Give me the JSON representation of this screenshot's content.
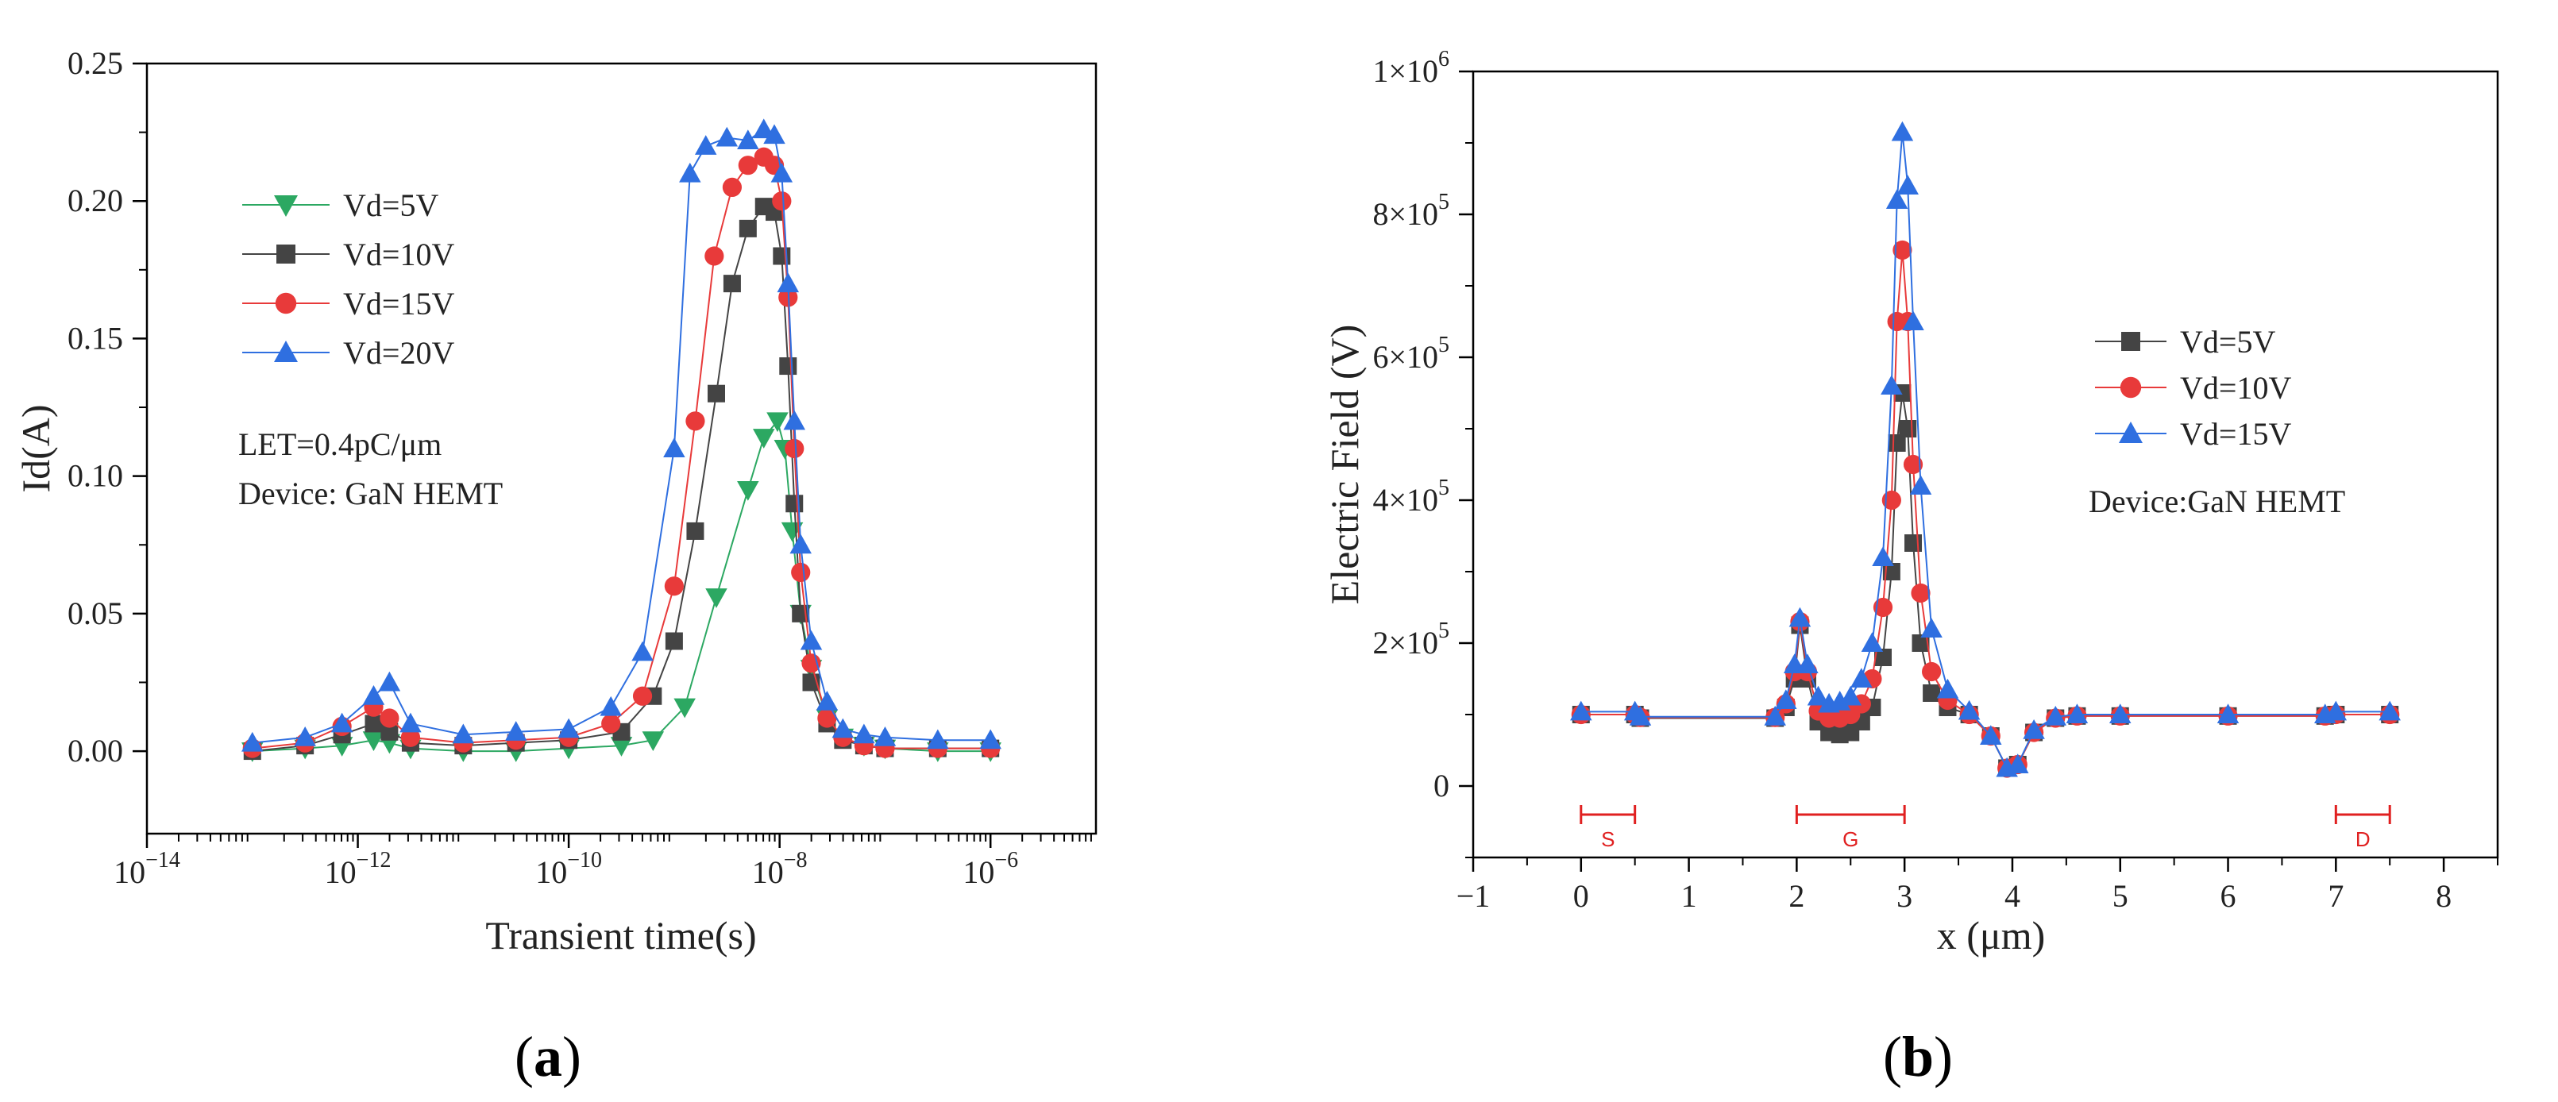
{
  "chart_data": [
    {
      "id": "a",
      "type": "line",
      "xscale": "log",
      "xlim_exp": [
        -14,
        -5
      ],
      "xticks_exp": [
        -14,
        -12,
        -10,
        -8,
        -6
      ],
      "xtick_labels": [
        {
          "base": "10",
          "exp": "−14"
        },
        {
          "base": "10",
          "exp": "−12"
        },
        {
          "base": "10",
          "exp": "−10"
        },
        {
          "base": "10",
          "exp": "−8"
        },
        {
          "base": "10",
          "exp": "−6"
        }
      ],
      "ylim": [
        -0.03,
        0.25
      ],
      "yticks": [
        0.0,
        0.05,
        0.1,
        0.15,
        0.2,
        0.25
      ],
      "ytick_labels": [
        "0.00",
        "0.05",
        "0.10",
        "0.15",
        "0.20",
        "0.25"
      ],
      "xlabel": "Transient time(s)",
      "ylabel": "Id(A)",
      "legend_position": "top-left",
      "annotations": [
        "LET=0.4pC/μm",
        "Device: GaN HEMT"
      ],
      "panel_label": {
        "open": "(",
        "letter": "a",
        "close": ")"
      },
      "series": [
        {
          "name": "Vd=5V",
          "color": "#2ca862",
          "marker": "triangle-down",
          "points": [
            [
              -13,
              0.0
            ],
            [
              -12.5,
              0.001
            ],
            [
              -12.15,
              0.002
            ],
            [
              -11.85,
              0.004
            ],
            [
              -11.7,
              0.003
            ],
            [
              -11.5,
              0.001
            ],
            [
              -11,
              0.0
            ],
            [
              -10.5,
              0.0
            ],
            [
              -10,
              0.001
            ],
            [
              -9.5,
              0.002
            ],
            [
              -9.2,
              0.004
            ],
            [
              -8.9,
              0.016
            ],
            [
              -8.6,
              0.056
            ],
            [
              -8.3,
              0.095
            ],
            [
              -8.15,
              0.114
            ],
            [
              -8.02,
              0.12
            ],
            [
              -7.95,
              0.11
            ],
            [
              -7.88,
              0.08
            ],
            [
              -7.8,
              0.05
            ],
            [
              -7.7,
              0.03
            ],
            [
              -7.55,
              0.012
            ],
            [
              -7.4,
              0.005
            ],
            [
              -7.2,
              0.002
            ],
            [
              -7,
              0.001
            ],
            [
              -6.5,
              0.0
            ],
            [
              -6,
              0.0
            ]
          ]
        },
        {
          "name": "Vd=10V",
          "color": "#444444",
          "marker": "square",
          "points": [
            [
              -13,
              0.0
            ],
            [
              -12.5,
              0.002
            ],
            [
              -12.15,
              0.006
            ],
            [
              -11.85,
              0.01
            ],
            [
              -11.7,
              0.007
            ],
            [
              -11.5,
              0.003
            ],
            [
              -11,
              0.002
            ],
            [
              -10.5,
              0.003
            ],
            [
              -10,
              0.004
            ],
            [
              -9.5,
              0.007
            ],
            [
              -9.2,
              0.02
            ],
            [
              -9.0,
              0.04
            ],
            [
              -8.8,
              0.08
            ],
            [
              -8.6,
              0.13
            ],
            [
              -8.45,
              0.17
            ],
            [
              -8.3,
              0.19
            ],
            [
              -8.15,
              0.198
            ],
            [
              -8.05,
              0.196
            ],
            [
              -7.98,
              0.18
            ],
            [
              -7.92,
              0.14
            ],
            [
              -7.86,
              0.09
            ],
            [
              -7.8,
              0.05
            ],
            [
              -7.7,
              0.025
            ],
            [
              -7.55,
              0.01
            ],
            [
              -7.4,
              0.004
            ],
            [
              -7.2,
              0.002
            ],
            [
              -7,
              0.001
            ],
            [
              -6.5,
              0.001
            ],
            [
              -6,
              0.001
            ]
          ]
        },
        {
          "name": "Vd=15V",
          "color": "#e83a3a",
          "marker": "circle",
          "points": [
            [
              -13,
              0.001
            ],
            [
              -12.5,
              0.003
            ],
            [
              -12.15,
              0.009
            ],
            [
              -11.85,
              0.016
            ],
            [
              -11.7,
              0.012
            ],
            [
              -11.5,
              0.005
            ],
            [
              -11,
              0.003
            ],
            [
              -10.5,
              0.004
            ],
            [
              -10,
              0.005
            ],
            [
              -9.6,
              0.01
            ],
            [
              -9.3,
              0.02
            ],
            [
              -9.0,
              0.06
            ],
            [
              -8.8,
              0.12
            ],
            [
              -8.62,
              0.18
            ],
            [
              -8.45,
              0.205
            ],
            [
              -8.3,
              0.213
            ],
            [
              -8.15,
              0.216
            ],
            [
              -8.05,
              0.213
            ],
            [
              -7.98,
              0.2
            ],
            [
              -7.92,
              0.165
            ],
            [
              -7.86,
              0.11
            ],
            [
              -7.8,
              0.065
            ],
            [
              -7.7,
              0.032
            ],
            [
              -7.55,
              0.012
            ],
            [
              -7.4,
              0.005
            ],
            [
              -7.2,
              0.002
            ],
            [
              -7,
              0.001
            ],
            [
              -6.5,
              0.001
            ],
            [
              -6,
              0.001
            ]
          ]
        },
        {
          "name": "Vd=20V",
          "color": "#2f6fe0",
          "marker": "triangle-up",
          "points": [
            [
              -13,
              0.003
            ],
            [
              -12.5,
              0.005
            ],
            [
              -12.15,
              0.01
            ],
            [
              -11.85,
              0.02
            ],
            [
              -11.7,
              0.025
            ],
            [
              -11.5,
              0.01
            ],
            [
              -11,
              0.006
            ],
            [
              -10.5,
              0.007
            ],
            [
              -10,
              0.008
            ],
            [
              -9.6,
              0.016
            ],
            [
              -9.3,
              0.036
            ],
            [
              -9.0,
              0.11
            ],
            [
              -8.85,
              0.21
            ],
            [
              -8.7,
              0.22
            ],
            [
              -8.5,
              0.223
            ],
            [
              -8.3,
              0.222
            ],
            [
              -8.15,
              0.226
            ],
            [
              -8.05,
              0.224
            ],
            [
              -7.98,
              0.21
            ],
            [
              -7.92,
              0.17
            ],
            [
              -7.86,
              0.12
            ],
            [
              -7.8,
              0.075
            ],
            [
              -7.7,
              0.04
            ],
            [
              -7.55,
              0.018
            ],
            [
              -7.4,
              0.008
            ],
            [
              -7.2,
              0.006
            ],
            [
              -7,
              0.005
            ],
            [
              -6.5,
              0.004
            ],
            [
              -6,
              0.004
            ]
          ]
        }
      ]
    },
    {
      "id": "b",
      "type": "line",
      "xlim": [
        -1,
        8.5
      ],
      "xticks": [
        -1,
        0,
        1,
        2,
        3,
        4,
        5,
        6,
        7,
        8
      ],
      "xtick_labels": [
        "−1",
        "0",
        "1",
        "2",
        "3",
        "4",
        "5",
        "6",
        "7",
        "8"
      ],
      "ylim": [
        -100000,
        1000000
      ],
      "yticks": [
        0,
        200000,
        400000,
        600000,
        800000,
        1000000
      ],
      "ytick_labels": [
        {
          "base": "0",
          "exp": ""
        },
        {
          "base": "2×10",
          "exp": "5"
        },
        {
          "base": "4×10",
          "exp": "5"
        },
        {
          "base": "6×10",
          "exp": "5"
        },
        {
          "base": "8×10",
          "exp": "5"
        },
        {
          "base": "1×10",
          "exp": "6"
        }
      ],
      "xlabel": "x (μm)",
      "ylabel": "Electric Field (V)",
      "legend_position": "right",
      "annotations": [
        "Device:GaN HEMT"
      ],
      "regions": [
        {
          "label": "S",
          "x0": 0,
          "x1": 0.5
        },
        {
          "label": "G",
          "x0": 2,
          "x1": 3
        },
        {
          "label": "D",
          "x0": 7,
          "x1": 7.5
        }
      ],
      "region_color": "#e02020",
      "panel_label": {
        "open": "(",
        "letter": "b",
        "close": ")"
      },
      "series": [
        {
          "name": "Vd=5V",
          "color": "#444444",
          "marker": "square",
          "points": [
            [
              0,
              100000
            ],
            [
              0.5,
              100000
            ],
            [
              0.55,
              95000
            ],
            [
              1.8,
              95000
            ],
            [
              1.9,
              110000
            ],
            [
              1.98,
              150000
            ],
            [
              2.03,
              225000
            ],
            [
              2.1,
              150000
            ],
            [
              2.2,
              90000
            ],
            [
              2.3,
              75000
            ],
            [
              2.4,
              72000
            ],
            [
              2.5,
              75000
            ],
            [
              2.6,
              90000
            ],
            [
              2.7,
              110000
            ],
            [
              2.8,
              180000
            ],
            [
              2.88,
              300000
            ],
            [
              2.93,
              480000
            ],
            [
              2.98,
              550000
            ],
            [
              3.03,
              500000
            ],
            [
              3.08,
              340000
            ],
            [
              3.15,
              200000
            ],
            [
              3.25,
              130000
            ],
            [
              3.4,
              110000
            ],
            [
              3.6,
              100000
            ],
            [
              3.8,
              70000
            ],
            [
              3.95,
              25000
            ],
            [
              4.05,
              30000
            ],
            [
              4.2,
              75000
            ],
            [
              4.4,
              95000
            ],
            [
              4.6,
              98000
            ],
            [
              5,
              98000
            ],
            [
              6,
              98000
            ],
            [
              6.9,
              98000
            ],
            [
              7.0,
              100000
            ],
            [
              7.5,
              100000
            ]
          ]
        },
        {
          "name": "Vd=10V",
          "color": "#e83a3a",
          "marker": "circle",
          "points": [
            [
              0,
              100000
            ],
            [
              0.5,
              100000
            ],
            [
              0.55,
              96000
            ],
            [
              1.8,
              96000
            ],
            [
              1.9,
              115000
            ],
            [
              1.98,
              160000
            ],
            [
              2.03,
              230000
            ],
            [
              2.1,
              160000
            ],
            [
              2.2,
              105000
            ],
            [
              2.3,
              95000
            ],
            [
              2.4,
              95000
            ],
            [
              2.5,
              100000
            ],
            [
              2.6,
              115000
            ],
            [
              2.7,
              150000
            ],
            [
              2.8,
              250000
            ],
            [
              2.88,
              400000
            ],
            [
              2.93,
              650000
            ],
            [
              2.98,
              750000
            ],
            [
              3.03,
              650000
            ],
            [
              3.08,
              450000
            ],
            [
              3.15,
              270000
            ],
            [
              3.25,
              160000
            ],
            [
              3.4,
              120000
            ],
            [
              3.6,
              100000
            ],
            [
              3.8,
              70000
            ],
            [
              3.95,
              25000
            ],
            [
              4.05,
              30000
            ],
            [
              4.2,
              75000
            ],
            [
              4.4,
              95000
            ],
            [
              4.6,
              98000
            ],
            [
              5,
              98000
            ],
            [
              6,
              98000
            ],
            [
              6.9,
              98000
            ],
            [
              7.0,
              100000
            ],
            [
              7.5,
              100000
            ]
          ]
        },
        {
          "name": "Vd=15V",
          "color": "#2f6fe0",
          "marker": "triangle-up",
          "points": [
            [
              0,
              104000
            ],
            [
              0.5,
              104000
            ],
            [
              0.55,
              97000
            ],
            [
              1.8,
              97000
            ],
            [
              1.9,
              120000
            ],
            [
              1.98,
              170000
            ],
            [
              2.03,
              235000
            ],
            [
              2.1,
              170000
            ],
            [
              2.2,
              125000
            ],
            [
              2.3,
              115000
            ],
            [
              2.4,
              118000
            ],
            [
              2.5,
              125000
            ],
            [
              2.6,
              150000
            ],
            [
              2.7,
              200000
            ],
            [
              2.8,
              320000
            ],
            [
              2.88,
              560000
            ],
            [
              2.93,
              820000
            ],
            [
              2.98,
              915000
            ],
            [
              3.03,
              840000
            ],
            [
              3.08,
              650000
            ],
            [
              3.15,
              420000
            ],
            [
              3.25,
              220000
            ],
            [
              3.4,
              135000
            ],
            [
              3.6,
              105000
            ],
            [
              3.8,
              70000
            ],
            [
              3.95,
              25000
            ],
            [
              4.05,
              30000
            ],
            [
              4.2,
              78000
            ],
            [
              4.4,
              97000
            ],
            [
              4.6,
              100000
            ],
            [
              5,
              100000
            ],
            [
              6,
              100000
            ],
            [
              6.9,
              100000
            ],
            [
              7.0,
              104000
            ],
            [
              7.5,
              104000
            ]
          ]
        }
      ]
    }
  ]
}
